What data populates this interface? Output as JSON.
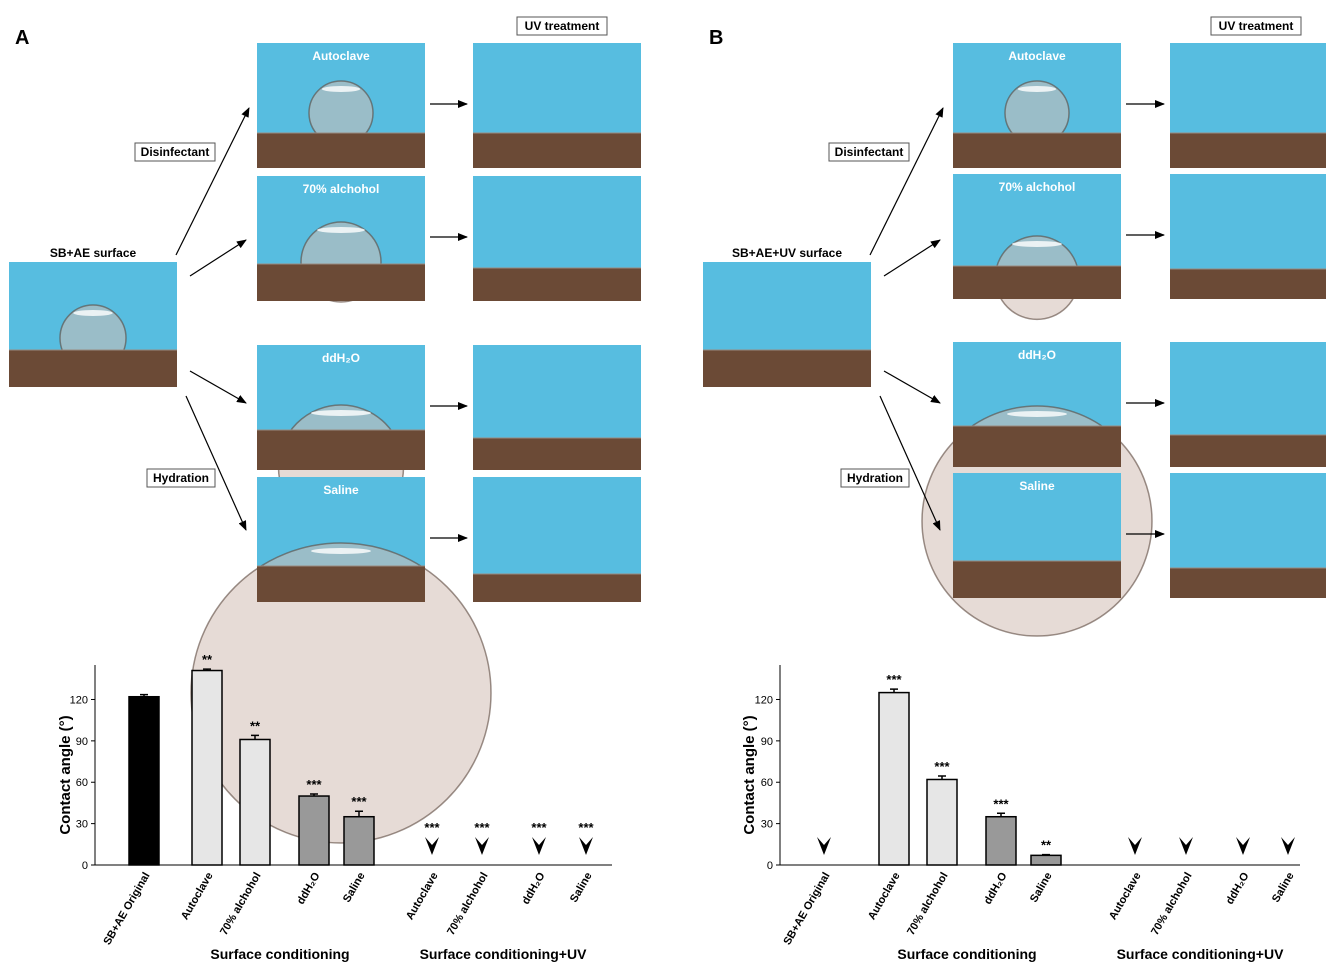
{
  "panels": [
    {
      "label": "A",
      "source": "SB+AE surface",
      "uv_label": "UV treatment",
      "groups": [
        "Disinfectant",
        "Hydration"
      ],
      "conditions": [
        "Autoclave",
        "70% alchohol",
        "ddH₂O",
        "Saline"
      ]
    },
    {
      "label": "B",
      "source": "SB+AE+UV surface",
      "uv_label": "UV treatment",
      "groups": [
        "Disinfectant",
        "Hydration"
      ],
      "conditions": [
        "Autoclave",
        "70% alchohol",
        "ddH₂O",
        "Saline"
      ]
    }
  ],
  "chart_data": [
    {
      "type": "bar",
      "y_label": "Contact angle (°)",
      "categories": [
        "SB+AE Original",
        "Autoclave",
        "70% alchohol",
        "ddH₂O",
        "Saline",
        "Autoclave",
        "70% alchohol",
        "ddH₂O",
        "Saline"
      ],
      "values": [
        122,
        141,
        91,
        50,
        35,
        0,
        0,
        0,
        0
      ],
      "errors": [
        1.5,
        1,
        3,
        1.5,
        4,
        0,
        0,
        0,
        0
      ],
      "colors": [
        "#000000",
        "#e6e6e6",
        "#e6e6e6",
        "#999999",
        "#999999",
        "#e6e6e6",
        "#e6e6e6",
        "#999999",
        "#999999"
      ],
      "annotations": [
        null,
        "**",
        "**",
        "***",
        "***",
        "***",
        "***",
        "***",
        "***"
      ],
      "group_labels": [
        "Surface conditioning",
        "Surface conditioning+UV"
      ],
      "ylim": [
        0,
        145
      ],
      "yticks": [
        0,
        30,
        60,
        90,
        120
      ]
    },
    {
      "type": "bar",
      "y_label": "Contact angle (°)",
      "categories": [
        "SB+AE Original",
        "Autoclave",
        "70% alchohol",
        "ddH₂O",
        "Saline",
        "Autoclave",
        "70% alchohol",
        "ddH₂O",
        "Saline"
      ],
      "values": [
        0,
        125,
        62,
        35,
        7,
        0,
        0,
        0,
        0
      ],
      "errors": [
        0,
        2.5,
        2.5,
        2.5,
        0.5,
        0,
        0,
        0,
        0
      ],
      "colors": [
        "#000000",
        "#e6e6e6",
        "#e6e6e6",
        "#999999",
        "#999999",
        "#e6e6e6",
        "#e6e6e6",
        "#999999",
        "#999999"
      ],
      "annotations": [
        null,
        "***",
        "***",
        "***",
        "**",
        null,
        null,
        null,
        null
      ],
      "group_labels": [
        "Surface conditioning",
        "Surface conditioning+UV"
      ],
      "ylim": [
        0,
        145
      ],
      "yticks": [
        0,
        30,
        60,
        90,
        120
      ]
    }
  ]
}
